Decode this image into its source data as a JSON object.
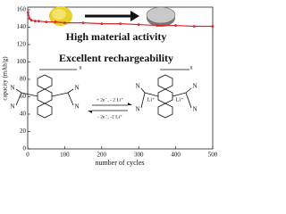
{
  "chart_data": {
    "type": "line",
    "headline": "High material activity",
    "subheadline": "Excellent rechargeability",
    "x_label": "number of cycles",
    "y_label": "capacity (mAh/g)",
    "x": [
      1,
      5,
      10,
      20,
      30,
      50,
      75,
      100,
      150,
      200,
      250,
      300,
      350,
      400,
      450,
      500
    ],
    "series": [
      {
        "color": "#d9262b",
        "values": [
          157,
          150,
          148,
          147,
          147,
          146,
          146,
          145,
          145,
          144,
          144,
          143,
          142,
          142,
          141,
          141
        ]
      }
    ],
    "xlim": [
      0,
      500
    ],
    "xticks": [
      0,
      100,
      200,
      300,
      400,
      500
    ],
    "ylim": [
      0,
      160
    ],
    "yticks": [
      0,
      20,
      40,
      60,
      80,
      100,
      120,
      140,
      160
    ],
    "annotations": [
      "N",
      "N",
      "N",
      "N",
      "n",
      "N",
      "N",
      "N",
      "N",
      "Li⁺",
      "Li⁺",
      "n",
      "+ 2e⁻, - 2 Li⁺",
      "- 2e⁻, -2 Li⁺"
    ]
  }
}
